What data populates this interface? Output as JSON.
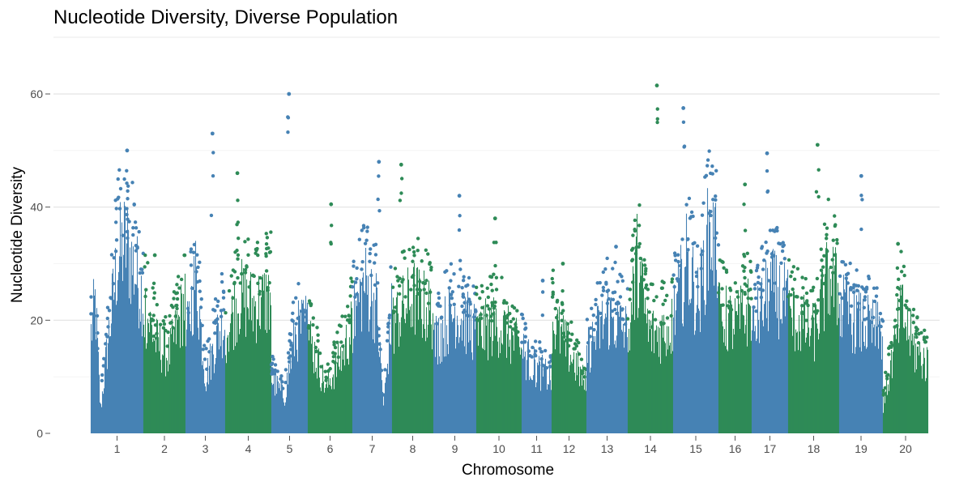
{
  "chart_data": {
    "type": "scatter",
    "title": "Nucleotide Diversity, Diverse Population",
    "xlabel": "Chromosome",
    "ylabel": "Nucleotide Diversity",
    "ylim": [
      0,
      65
    ],
    "y_ticks": [
      0,
      20,
      40,
      60
    ],
    "grid": true,
    "legend": "none",
    "colors": {
      "odd_chromosome": "#4682B4",
      "even_chromosome": "#2E8B57"
    },
    "chromosomes": [
      {
        "label": "1",
        "color": "odd_chromosome",
        "profile": [
          [
            0,
            22
          ],
          [
            0.08,
            29
          ],
          [
            0.18,
            5
          ],
          [
            0.3,
            18
          ],
          [
            0.5,
            38
          ],
          [
            0.65,
            42
          ],
          [
            0.85,
            35
          ],
          [
            1,
            30
          ]
        ],
        "peak": 50.0
      },
      {
        "label": "2",
        "color": "even_chromosome",
        "profile": [
          [
            0,
            28
          ],
          [
            0.3,
            20
          ],
          [
            0.6,
            17
          ],
          [
            0.85,
            25
          ],
          [
            1,
            30
          ]
        ],
        "peak": 31.5
      },
      {
        "label": "3",
        "color": "odd_chromosome",
        "profile": [
          [
            0,
            20
          ],
          [
            0.25,
            35
          ],
          [
            0.5,
            12
          ],
          [
            0.8,
            22
          ],
          [
            1,
            25
          ]
        ],
        "peak": 53.0
      },
      {
        "label": "4",
        "color": "even_chromosome",
        "profile": [
          [
            0,
            22
          ],
          [
            0.3,
            30
          ],
          [
            0.6,
            28
          ],
          [
            1,
            30
          ]
        ],
        "peak": 46.0
      },
      {
        "label": "5",
        "color": "odd_chromosome",
        "profile": [
          [
            0,
            12
          ],
          [
            0.35,
            8
          ],
          [
            0.65,
            22
          ],
          [
            1,
            25
          ]
        ],
        "peak": 60.0
      },
      {
        "label": "6",
        "color": "even_chromosome",
        "profile": [
          [
            0,
            22
          ],
          [
            0.4,
            10
          ],
          [
            0.8,
            18
          ],
          [
            1,
            24
          ]
        ],
        "peak": 40.5
      },
      {
        "label": "7",
        "color": "odd_chromosome",
        "profile": [
          [
            0,
            25
          ],
          [
            0.3,
            33
          ],
          [
            0.6,
            28
          ],
          [
            0.78,
            6
          ],
          [
            1,
            28
          ]
        ],
        "peak": 48.0
      },
      {
        "label": "8",
        "color": "even_chromosome",
        "profile": [
          [
            0,
            24
          ],
          [
            0.5,
            30
          ],
          [
            1,
            26
          ]
        ],
        "peak": 47.5
      },
      {
        "label": "9",
        "color": "odd_chromosome",
        "profile": [
          [
            0,
            20
          ],
          [
            0.5,
            27
          ],
          [
            1,
            22
          ]
        ],
        "peak": 42.0
      },
      {
        "label": "10",
        "color": "even_chromosome",
        "profile": [
          [
            0,
            22
          ],
          [
            0.5,
            24
          ],
          [
            1,
            18
          ]
        ],
        "peak": 38.0
      },
      {
        "label": "11",
        "color": "odd_chromosome",
        "profile": [
          [
            0,
            18
          ],
          [
            0.5,
            14
          ],
          [
            1,
            12
          ]
        ],
        "peak": 27.0
      },
      {
        "label": "12",
        "color": "even_chromosome",
        "profile": [
          [
            0,
            25
          ],
          [
            0.5,
            18
          ],
          [
            1,
            10
          ]
        ],
        "peak": 30.0
      },
      {
        "label": "13",
        "color": "odd_chromosome",
        "profile": [
          [
            0,
            18
          ],
          [
            0.5,
            26
          ],
          [
            1,
            22
          ]
        ],
        "peak": 33.0
      },
      {
        "label": "14",
        "color": "even_chromosome",
        "profile": [
          [
            0,
            20
          ],
          [
            0.2,
            38
          ],
          [
            0.45,
            22
          ],
          [
            0.7,
            22
          ],
          [
            1,
            24
          ]
        ],
        "peak": 61.5
      },
      {
        "label": "15",
        "color": "odd_chromosome",
        "profile": [
          [
            0,
            25
          ],
          [
            0.3,
            38
          ],
          [
            0.55,
            28
          ],
          [
            0.8,
            45
          ],
          [
            1,
            38
          ]
        ],
        "peak": 57.5
      },
      {
        "label": "16",
        "color": "even_chromosome",
        "profile": [
          [
            0,
            26
          ],
          [
            0.5,
            24
          ],
          [
            1,
            28
          ]
        ],
        "peak": 44.0
      },
      {
        "label": "17",
        "color": "odd_chromosome",
        "profile": [
          [
            0,
            22
          ],
          [
            0.5,
            32
          ],
          [
            1,
            28
          ]
        ],
        "peak": 49.5
      },
      {
        "label": "18",
        "color": "even_chromosome",
        "profile": [
          [
            0,
            26
          ],
          [
            0.5,
            22
          ],
          [
            0.8,
            35
          ],
          [
            1,
            30
          ]
        ],
        "peak": 51.0
      },
      {
        "label": "19",
        "color": "odd_chromosome",
        "profile": [
          [
            0,
            28
          ],
          [
            0.5,
            24
          ],
          [
            1,
            22
          ]
        ],
        "peak": 45.5
      },
      {
        "label": "20",
        "color": "even_chromosome",
        "profile": [
          [
            0,
            6
          ],
          [
            0.4,
            27
          ],
          [
            0.7,
            18
          ],
          [
            1,
            15
          ]
        ],
        "peak": 33.5
      }
    ]
  }
}
